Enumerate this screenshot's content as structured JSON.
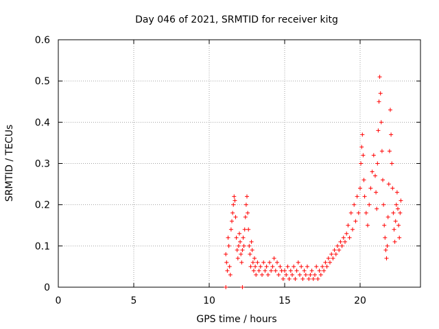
{
  "chart_data": {
    "type": "scatter",
    "title": "Day 046 of 2021, SRMTID for receiver kitg",
    "xlabel": "GPS time / hours",
    "ylabel": "SRMTID / TECUs",
    "xlim": [
      0,
      24
    ],
    "ylim": [
      0,
      0.6
    ],
    "xticks": [
      "0",
      "5",
      "10",
      "15",
      "20"
    ],
    "yticks": [
      "0",
      "0.1",
      "0.2",
      "0.3",
      "0.4",
      "0.5",
      "0.6"
    ],
    "grid": true,
    "series": [
      {
        "name": "SRMTID",
        "color": "#ff0000",
        "marker": "plus",
        "points": [
          [
            11.1,
            0.0
          ],
          [
            12.2,
            0.0
          ],
          [
            11.1,
            0.08
          ],
          [
            11.15,
            0.06
          ],
          [
            11.2,
            0.04
          ],
          [
            11.25,
            0.12
          ],
          [
            11.3,
            0.1
          ],
          [
            11.35,
            0.05
          ],
          [
            11.4,
            0.03
          ],
          [
            11.45,
            0.14
          ],
          [
            11.5,
            0.16
          ],
          [
            11.55,
            0.18
          ],
          [
            11.6,
            0.2
          ],
          [
            11.65,
            0.22
          ],
          [
            11.7,
            0.21
          ],
          [
            11.75,
            0.17
          ],
          [
            11.8,
            0.12
          ],
          [
            11.85,
            0.09
          ],
          [
            11.9,
            0.07
          ],
          [
            11.95,
            0.1
          ],
          [
            12.0,
            0.13
          ],
          [
            12.05,
            0.11
          ],
          [
            12.1,
            0.08
          ],
          [
            12.15,
            0.06
          ],
          [
            12.2,
            0.09
          ],
          [
            12.25,
            0.12
          ],
          [
            12.3,
            0.1
          ],
          [
            12.35,
            0.14
          ],
          [
            12.4,
            0.17
          ],
          [
            12.45,
            0.2
          ],
          [
            12.5,
            0.22
          ],
          [
            12.55,
            0.18
          ],
          [
            12.6,
            0.14
          ],
          [
            12.65,
            0.1
          ],
          [
            12.7,
            0.08
          ],
          [
            12.75,
            0.05
          ],
          [
            12.8,
            0.11
          ],
          [
            12.85,
            0.09
          ],
          [
            12.9,
            0.06
          ],
          [
            12.95,
            0.04
          ],
          [
            13.0,
            0.07
          ],
          [
            13.05,
            0.05
          ],
          [
            13.1,
            0.03
          ],
          [
            13.2,
            0.06
          ],
          [
            13.3,
            0.04
          ],
          [
            13.4,
            0.05
          ],
          [
            13.5,
            0.03
          ],
          [
            13.6,
            0.06
          ],
          [
            13.7,
            0.04
          ],
          [
            13.8,
            0.05
          ],
          [
            13.9,
            0.03
          ],
          [
            14.0,
            0.06
          ],
          [
            14.1,
            0.04
          ],
          [
            14.2,
            0.05
          ],
          [
            14.3,
            0.07
          ],
          [
            14.4,
            0.04
          ],
          [
            14.5,
            0.06
          ],
          [
            14.6,
            0.03
          ],
          [
            14.7,
            0.05
          ],
          [
            14.8,
            0.04
          ],
          [
            14.9,
            0.02
          ],
          [
            15.0,
            0.04
          ],
          [
            15.1,
            0.03
          ],
          [
            15.2,
            0.05
          ],
          [
            15.3,
            0.02
          ],
          [
            15.4,
            0.04
          ],
          [
            15.5,
            0.03
          ],
          [
            15.6,
            0.05
          ],
          [
            15.7,
            0.02
          ],
          [
            15.8,
            0.04
          ],
          [
            15.9,
            0.06
          ],
          [
            16.0,
            0.03
          ],
          [
            16.1,
            0.05
          ],
          [
            16.2,
            0.02
          ],
          [
            16.3,
            0.04
          ],
          [
            16.4,
            0.03
          ],
          [
            16.5,
            0.05
          ],
          [
            16.6,
            0.02
          ],
          [
            16.7,
            0.03
          ],
          [
            16.8,
            0.04
          ],
          [
            16.9,
            0.02
          ],
          [
            17.0,
            0.03
          ],
          [
            17.1,
            0.05
          ],
          [
            17.2,
            0.02
          ],
          [
            17.3,
            0.04
          ],
          [
            17.4,
            0.03
          ],
          [
            17.5,
            0.05
          ],
          [
            17.6,
            0.04
          ],
          [
            17.7,
            0.06
          ],
          [
            17.8,
            0.05
          ],
          [
            17.9,
            0.07
          ],
          [
            18.0,
            0.06
          ],
          [
            18.1,
            0.08
          ],
          [
            18.2,
            0.07
          ],
          [
            18.3,
            0.09
          ],
          [
            18.4,
            0.08
          ],
          [
            18.5,
            0.1
          ],
          [
            18.6,
            0.09
          ],
          [
            18.7,
            0.11
          ],
          [
            18.8,
            0.1
          ],
          [
            18.9,
            0.12
          ],
          [
            19.0,
            0.11
          ],
          [
            19.1,
            0.13
          ],
          [
            19.2,
            0.15
          ],
          [
            19.3,
            0.12
          ],
          [
            19.4,
            0.18
          ],
          [
            19.5,
            0.14
          ],
          [
            19.6,
            0.2
          ],
          [
            19.7,
            0.16
          ],
          [
            19.8,
            0.22
          ],
          [
            19.9,
            0.18
          ],
          [
            20.0,
            0.24
          ],
          [
            20.05,
            0.3
          ],
          [
            20.1,
            0.34
          ],
          [
            20.15,
            0.37
          ],
          [
            20.2,
            0.32
          ],
          [
            20.25,
            0.26
          ],
          [
            20.3,
            0.22
          ],
          [
            20.4,
            0.18
          ],
          [
            20.5,
            0.15
          ],
          [
            20.6,
            0.2
          ],
          [
            20.7,
            0.24
          ],
          [
            20.8,
            0.28
          ],
          [
            20.9,
            0.32
          ],
          [
            21.0,
            0.27
          ],
          [
            21.05,
            0.23
          ],
          [
            21.1,
            0.19
          ],
          [
            21.15,
            0.3
          ],
          [
            21.2,
            0.38
          ],
          [
            21.25,
            0.45
          ],
          [
            21.3,
            0.51
          ],
          [
            21.35,
            0.47
          ],
          [
            21.4,
            0.4
          ],
          [
            21.45,
            0.33
          ],
          [
            21.5,
            0.26
          ],
          [
            21.55,
            0.2
          ],
          [
            21.6,
            0.15
          ],
          [
            21.65,
            0.12
          ],
          [
            21.7,
            0.09
          ],
          [
            21.75,
            0.07
          ],
          [
            21.8,
            0.1
          ],
          [
            21.85,
            0.17
          ],
          [
            21.9,
            0.25
          ],
          [
            21.95,
            0.33
          ],
          [
            22.0,
            0.43
          ],
          [
            22.05,
            0.37
          ],
          [
            22.1,
            0.3
          ],
          [
            22.15,
            0.24
          ],
          [
            22.2,
            0.18
          ],
          [
            22.25,
            0.14
          ],
          [
            22.3,
            0.11
          ],
          [
            22.35,
            0.16
          ],
          [
            22.4,
            0.2
          ],
          [
            22.45,
            0.23
          ],
          [
            22.5,
            0.19
          ],
          [
            22.55,
            0.15
          ],
          [
            22.6,
            0.12
          ],
          [
            22.65,
            0.18
          ],
          [
            22.7,
            0.21
          ]
        ]
      }
    ]
  }
}
